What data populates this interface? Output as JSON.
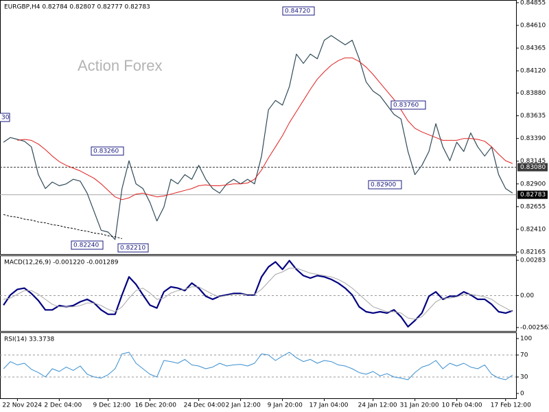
{
  "chart_data": [
    {
      "type": "line",
      "title": "EURGBP,H4  0.82784 0.82807 0.82777 0.82783",
      "watermark": "Action Forex",
      "ylim": [
        0.82143,
        0.84884
      ],
      "yticks": [
        0.84855,
        {
          "value": 0.8461,
          "label": "0.84610"
        },
        0.84365,
        {
          "value": 0.8412,
          "label": "0.84120"
        },
        {
          "value": 0.8388,
          "label": "0.83880"
        },
        0.83635,
        {
          "value": 0.8339,
          "label": "0.83390"
        },
        0.83145,
        {
          "value": 0.829,
          "label": "0.82900"
        },
        0.82655,
        {
          "value": 0.8241,
          "label": "0.82410"
        },
        0.82165
      ],
      "levels": [
        {
          "value": 0.8308,
          "label": "0.83080",
          "color": "#404040",
          "dashed": true
        },
        {
          "value": 0.82783,
          "label": "0.82783",
          "color": "#a8a8a8",
          "dashed": false
        }
      ],
      "annotations": [
        "0.84720",
        "0.83760",
        "0.83260",
        "0.82900",
        "0.82240",
        "0.82210",
        "30"
      ],
      "series": [
        {
          "color": "#2f4a58",
          "values": [
            0.8335,
            0.834,
            0.8338,
            0.8336,
            0.833,
            0.83,
            0.8285,
            0.8292,
            0.8288,
            0.829,
            0.8295,
            0.8293,
            0.828,
            0.826,
            0.824,
            0.8238,
            0.823,
            0.8285,
            0.8315,
            0.829,
            0.8285,
            0.827,
            0.825,
            0.8265,
            0.8295,
            0.829,
            0.83,
            0.8295,
            0.831,
            0.8295,
            0.8285,
            0.828,
            0.829,
            0.8295,
            0.829,
            0.8295,
            0.829,
            0.832,
            0.837,
            0.838,
            0.8375,
            0.8395,
            0.843,
            0.842,
            0.843,
            0.8425,
            0.8445,
            0.845,
            0.8445,
            0.844,
            0.8445,
            0.8425,
            0.84,
            0.839,
            0.8385,
            0.8375,
            0.8365,
            0.836,
            0.8325,
            0.83,
            0.831,
            0.8325,
            0.8355,
            0.833,
            0.8315,
            0.8335,
            0.8325,
            0.8345,
            0.833,
            0.832,
            0.833,
            0.83,
            0.8285,
            0.828
          ]
        },
        {
          "color": "#e02020",
          "values": [
            null,
            null,
            0.8337,
            0.8338,
            0.8337,
            0.8333,
            0.8327,
            0.832,
            0.8314,
            0.831,
            0.8307,
            0.8304,
            0.83,
            0.8296,
            0.829,
            0.8283,
            0.8276,
            0.8273,
            0.8275,
            0.8279,
            0.828,
            0.8278,
            0.8276,
            0.8277,
            0.8279,
            0.8281,
            0.8283,
            0.8285,
            0.8288,
            0.8289,
            0.8288,
            0.8288,
            0.8289,
            0.829,
            0.829,
            0.8291,
            0.8295,
            0.8305,
            0.8318,
            0.833,
            0.8342,
            0.8356,
            0.8368,
            0.838,
            0.8392,
            0.8403,
            0.8411,
            0.8418,
            0.8423,
            0.8426,
            0.8426,
            0.8422,
            0.8416,
            0.8408,
            0.8399,
            0.839,
            0.8381,
            0.837,
            0.8358,
            0.835,
            0.8346,
            0.8343,
            0.834,
            0.8337,
            0.8337,
            0.8337,
            0.8339,
            0.8339,
            0.8338,
            0.8336,
            0.833,
            0.8322,
            0.8315,
            0.8312
          ]
        },
        {
          "color": "#000000",
          "dashed": true,
          "values": [
            0.8257,
            0.8255,
            0.8254,
            0.8252,
            0.8251,
            0.8249,
            0.8248,
            0.8246,
            0.8245,
            0.8243,
            0.8242,
            0.824,
            0.8239,
            0.8237,
            0.8236,
            0.8234,
            0.8233,
            0.8231,
            null,
            null,
            null,
            null,
            null,
            null,
            null,
            null,
            null,
            null,
            null,
            null,
            null,
            null,
            null,
            null,
            null,
            null,
            null,
            null,
            null,
            null,
            null,
            null,
            null,
            null,
            null,
            null,
            null,
            null,
            null,
            null,
            null,
            null,
            null,
            null,
            null,
            null,
            null,
            null,
            null,
            null,
            null,
            null,
            null,
            null,
            null,
            null,
            null,
            null,
            null,
            null,
            null,
            null,
            null,
            null
          ]
        }
      ]
    },
    {
      "type": "line",
      "title": "MACD(12,26,9) -0.001220 -0.001289",
      "ylim": [
        -0.00284,
        0.00322
      ],
      "yticks": [
        0.00283,
        {
          "value": 0,
          "label": "0.00"
        },
        -0.002563
      ],
      "levels": [
        0
      ],
      "series": [
        {
          "color": "#000080",
          "values": [
            -0.00077,
            5e-05,
            0.0005,
            0.0006,
            0.00017,
            -0.0004,
            -0.00115,
            -0.00115,
            -0.0008,
            -0.0009,
            -0.0008,
            -0.0005,
            -0.0003,
            -0.0006,
            -0.00115,
            -0.0015,
            -0.0015,
            5e-05,
            0.0015,
            0.0009,
            5e-05,
            -0.00077,
            -0.001,
            0.0003,
            0.0007,
            0.0006,
            0.0004,
            0.001,
            0.0006,
            -5e-05,
            -0.0003,
            -5e-05,
            5e-05,
            0.00017,
            0.00017,
            5e-05,
            5e-05,
            0.0015,
            0.0023,
            0.0027,
            0.0021,
            0.0028,
            0.0021,
            0.0016,
            0.0014,
            0.0016,
            0.0015,
            0.0013,
            0.001,
            0.0006,
            5e-05,
            -0.0009,
            -0.0013,
            -0.0014,
            -0.0013,
            -0.0014,
            -0.00115,
            -0.0017,
            -0.0025,
            -0.002,
            -0.0014,
            -5e-05,
            0.0003,
            -0.0003,
            -5e-05,
            -5e-05,
            0.0003,
            5e-05,
            -0.0003,
            -0.0003,
            -0.0007,
            -0.0013,
            -0.0014,
            -0.00122
          ]
        },
        {
          "color": "#a8a8a8",
          "values": [
            -0.0003,
            -0.0002,
            0.0001,
            0.0004,
            0.0004,
            0.0001,
            -0.0003,
            -0.0007,
            -0.0009,
            -0.0009,
            -0.0009,
            -0.0008,
            -0.0006,
            -0.0006,
            -0.0008,
            -0.0011,
            -0.0013,
            -0.0009,
            -0.0002,
            0.0004,
            0.0006,
            0.0002,
            -0.0003,
            -0.0002,
            0.0002,
            0.0004,
            0.0005,
            0.0007,
            0.0007,
            0.0004,
            0.0001,
            -0.0001,
            0,
            0.0001,
            0.0001,
            0.0001,
            0.0001,
            0.0005,
            0.0011,
            0.0017,
            0.0019,
            0.0022,
            0.0022,
            0.002,
            0.0018,
            0.0017,
            0.0016,
            0.0015,
            0.0013,
            0.001,
            0.0006,
            0.0001,
            -0.0004,
            -0.0009,
            -0.0011,
            -0.0013,
            -0.0013,
            -0.0014,
            -0.0018,
            -0.0019,
            -0.0017,
            -0.0011,
            -0.0005,
            -0.0002,
            -0.0002,
            -0.0001,
            0.0001,
            0.0001,
            0,
            -0.0001,
            -0.0003,
            -0.0007,
            -0.001,
            -0.00129
          ]
        }
      ]
    },
    {
      "type": "line",
      "title": "RSI(14) 33.3738",
      "ylim": [
        -8.75,
        111.25
      ],
      "yticks": [
        100,
        70,
        30,
        0
      ],
      "levels": [
        70,
        30
      ],
      "categories": [
        null,
        null,
        "22 Nov 2024",
        null,
        null,
        null,
        null,
        null,
        "2 Dec 04:00",
        null,
        null,
        null,
        null,
        null,
        null,
        "9 Dec 12:00",
        null,
        null,
        null,
        null,
        null,
        "16 Dec 20:00",
        null,
        null,
        null,
        null,
        null,
        null,
        "24 Dec 04:00",
        null,
        null,
        null,
        null,
        null,
        "2 Jan 12:00",
        null,
        null,
        null,
        null,
        null,
        "9 Jan 20:00",
        null,
        null,
        null,
        null,
        null,
        "17 Jan 04:00",
        null,
        null,
        null,
        null,
        null,
        null,
        "24 Jan 12:00",
        null,
        null,
        null,
        null,
        null,
        "31 Jan 20:00",
        null,
        null,
        null,
        null,
        null,
        "10 Feb 04:00",
        null,
        null,
        null,
        null,
        null,
        null,
        "17 Feb 12:00",
        null
      ],
      "series": [
        {
          "color": "#3a8fd0",
          "values": [
            45,
            58,
            52,
            55,
            44,
            38,
            30,
            45,
            40,
            48,
            42,
            50,
            35,
            30,
            28,
            34,
            45,
            72,
            75,
            55,
            45,
            35,
            30,
            60,
            58,
            55,
            62,
            52,
            50,
            45,
            48,
            55,
            50,
            52,
            53,
            50,
            55,
            72,
            70,
            60,
            68,
            75,
            65,
            58,
            62,
            55,
            60,
            58,
            52,
            50,
            45,
            38,
            35,
            40,
            32,
            36,
            30,
            28,
            25,
            38,
            48,
            52,
            60,
            45,
            55,
            50,
            55,
            48,
            45,
            52,
            35,
            28,
            25,
            33.3738
          ]
        }
      ]
    }
  ]
}
